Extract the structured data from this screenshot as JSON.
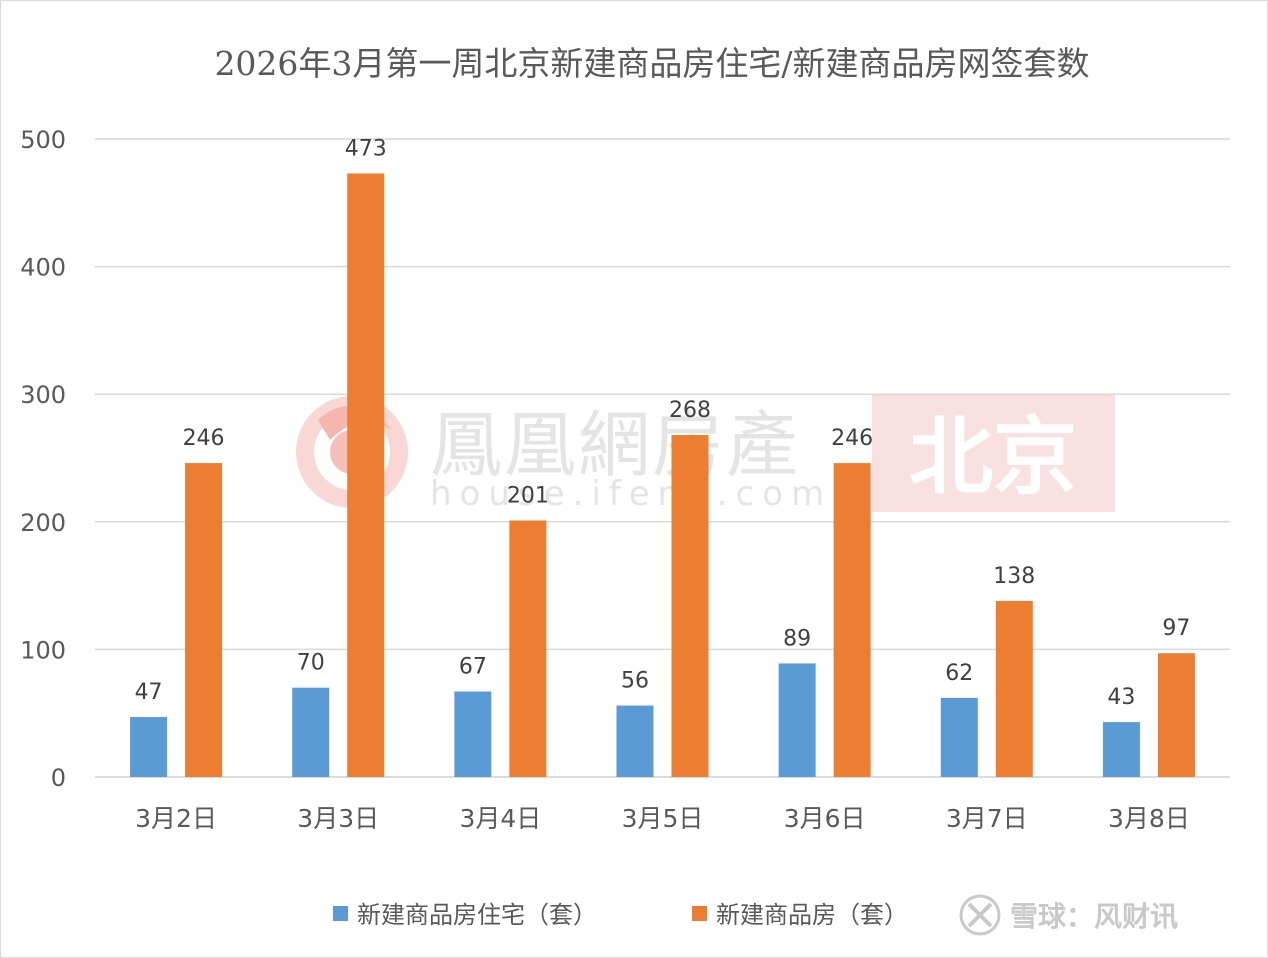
{
  "chart_data": {
    "type": "bar",
    "title": "2026年3月第一周北京新建商品房住宅/新建商品房网签套数",
    "categories": [
      "3月2日",
      "3月3日",
      "3月4日",
      "3月5日",
      "3月6日",
      "3月7日",
      "3月8日"
    ],
    "series": [
      {
        "name": "新建商品房住宅（套）",
        "values": [
          47,
          70,
          67,
          56,
          89,
          62,
          43
        ],
        "color": "#5b9bd5"
      },
      {
        "name": "新建商品房（套）",
        "values": [
          246,
          473,
          201,
          268,
          246,
          138,
          97
        ],
        "color": "#ed7d31"
      }
    ],
    "ylim": [
      0,
      500
    ],
    "yticks": [
      0,
      100,
      200,
      300,
      400,
      500
    ],
    "grid": true,
    "legend": "bottom"
  },
  "watermark": {
    "brand": "鳳凰網房產",
    "url": "house.ifeng.com",
    "city": "北京"
  },
  "credit": "雪球：风财讯"
}
